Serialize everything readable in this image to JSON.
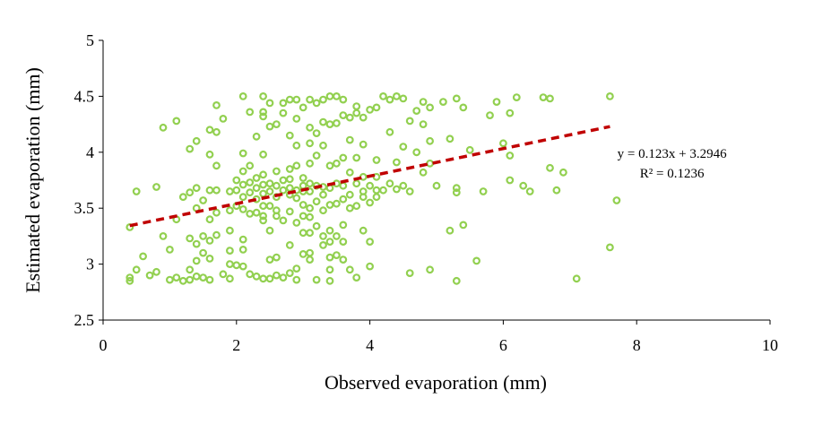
{
  "chart_data": {
    "type": "scatter",
    "xlabel": "Observed evaporation (mm)",
    "ylabel": "Estimated evaporation (mm)",
    "xlim": [
      0,
      10
    ],
    "ylim": [
      2.5,
      5
    ],
    "xticks": [
      "0",
      "2",
      "4",
      "6",
      "8",
      "10"
    ],
    "yticks": [
      "2.5",
      "3",
      "3.5",
      "4",
      "4.5",
      "5"
    ],
    "grid": false,
    "marker_color": "#92d050",
    "trendline_color": "#c00000",
    "trendline": {
      "slope": 0.123,
      "intercept": 3.2946,
      "x_range": [
        0.4,
        7.6
      ]
    },
    "annotation": {
      "equation": "y = 0.123x + 3.2946",
      "r2": "R² = 0.1236"
    },
    "points": [
      [
        0.4,
        2.85
      ],
      [
        0.4,
        2.88
      ],
      [
        0.4,
        3.33
      ],
      [
        0.5,
        3.65
      ],
      [
        0.5,
        2.95
      ],
      [
        0.6,
        3.07
      ],
      [
        0.7,
        2.9
      ],
      [
        0.8,
        3.69
      ],
      [
        0.8,
        2.93
      ],
      [
        0.9,
        4.22
      ],
      [
        0.9,
        3.25
      ],
      [
        1.0,
        3.13
      ],
      [
        1.0,
        2.86
      ],
      [
        1.1,
        4.28
      ],
      [
        1.1,
        3.4
      ],
      [
        1.1,
        2.88
      ],
      [
        1.2,
        3.6
      ],
      [
        1.2,
        2.85
      ],
      [
        1.3,
        4.03
      ],
      [
        1.3,
        3.64
      ],
      [
        1.3,
        3.23
      ],
      [
        1.3,
        2.95
      ],
      [
        1.3,
        2.86
      ],
      [
        1.4,
        4.1
      ],
      [
        1.4,
        3.68
      ],
      [
        1.4,
        3.5
      ],
      [
        1.4,
        3.18
      ],
      [
        1.4,
        3.03
      ],
      [
        1.4,
        2.89
      ],
      [
        1.5,
        3.57
      ],
      [
        1.5,
        3.25
      ],
      [
        1.5,
        3.1
      ],
      [
        1.5,
        2.88
      ],
      [
        1.6,
        4.2
      ],
      [
        1.6,
        3.98
      ],
      [
        1.6,
        3.66
      ],
      [
        1.6,
        3.4
      ],
      [
        1.6,
        3.21
      ],
      [
        1.6,
        3.05
      ],
      [
        1.6,
        2.86
      ],
      [
        1.7,
        4.42
      ],
      [
        1.7,
        4.18
      ],
      [
        1.7,
        3.88
      ],
      [
        1.7,
        3.66
      ],
      [
        1.7,
        3.46
      ],
      [
        1.7,
        3.26
      ],
      [
        1.8,
        4.3
      ],
      [
        1.8,
        2.91
      ],
      [
        1.9,
        3.65
      ],
      [
        1.9,
        3.48
      ],
      [
        1.9,
        3.3
      ],
      [
        1.9,
        3.12
      ],
      [
        1.9,
        3.0
      ],
      [
        1.9,
        2.87
      ],
      [
        2.0,
        3.75
      ],
      [
        2.0,
        3.66
      ],
      [
        2.0,
        3.52
      ],
      [
        2.0,
        2.99
      ],
      [
        2.1,
        4.5
      ],
      [
        2.1,
        3.99
      ],
      [
        2.1,
        3.83
      ],
      [
        2.1,
        3.71
      ],
      [
        2.1,
        3.6
      ],
      [
        2.1,
        3.49
      ],
      [
        2.1,
        3.22
      ],
      [
        2.1,
        3.13
      ],
      [
        2.1,
        2.98
      ],
      [
        2.2,
        4.36
      ],
      [
        2.2,
        3.88
      ],
      [
        2.2,
        3.73
      ],
      [
        2.2,
        3.64
      ],
      [
        2.2,
        3.45
      ],
      [
        2.2,
        2.91
      ],
      [
        2.3,
        4.14
      ],
      [
        2.3,
        3.77
      ],
      [
        2.3,
        3.68
      ],
      [
        2.3,
        3.58
      ],
      [
        2.3,
        3.46
      ],
      [
        2.3,
        2.89
      ],
      [
        2.4,
        4.5
      ],
      [
        2.4,
        4.36
      ],
      [
        2.4,
        4.32
      ],
      [
        2.4,
        3.98
      ],
      [
        2.4,
        3.8
      ],
      [
        2.4,
        3.71
      ],
      [
        2.4,
        3.63
      ],
      [
        2.4,
        3.52
      ],
      [
        2.4,
        3.43
      ],
      [
        2.4,
        3.39
      ],
      [
        2.4,
        2.87
      ],
      [
        2.5,
        4.44
      ],
      [
        2.5,
        4.23
      ],
      [
        2.5,
        3.72
      ],
      [
        2.5,
        3.65
      ],
      [
        2.5,
        3.52
      ],
      [
        2.5,
        3.3
      ],
      [
        2.5,
        3.04
      ],
      [
        2.5,
        2.87
      ],
      [
        2.6,
        4.25
      ],
      [
        2.6,
        3.83
      ],
      [
        2.6,
        3.7
      ],
      [
        2.6,
        3.6
      ],
      [
        2.6,
        3.48
      ],
      [
        2.6,
        3.43
      ],
      [
        2.6,
        3.06
      ],
      [
        2.6,
        2.9
      ],
      [
        2.7,
        4.44
      ],
      [
        2.7,
        4.35
      ],
      [
        2.7,
        3.75
      ],
      [
        2.7,
        3.66
      ],
      [
        2.7,
        3.39
      ],
      [
        2.7,
        2.88
      ],
      [
        2.8,
        4.47
      ],
      [
        2.8,
        4.15
      ],
      [
        2.8,
        3.85
      ],
      [
        2.8,
        3.76
      ],
      [
        2.8,
        3.68
      ],
      [
        2.8,
        3.62
      ],
      [
        2.8,
        3.47
      ],
      [
        2.8,
        3.17
      ],
      [
        2.8,
        2.92
      ],
      [
        2.9,
        4.47
      ],
      [
        2.9,
        4.3
      ],
      [
        2.9,
        4.06
      ],
      [
        2.9,
        3.88
      ],
      [
        2.9,
        3.66
      ],
      [
        2.9,
        3.59
      ],
      [
        2.9,
        3.37
      ],
      [
        2.9,
        2.96
      ],
      [
        2.9,
        2.86
      ],
      [
        3.0,
        4.4
      ],
      [
        3.0,
        3.77
      ],
      [
        3.0,
        3.7
      ],
      [
        3.0,
        3.65
      ],
      [
        3.0,
        3.53
      ],
      [
        3.0,
        3.43
      ],
      [
        3.0,
        3.28
      ],
      [
        3.0,
        3.09
      ],
      [
        3.1,
        4.47
      ],
      [
        3.1,
        4.22
      ],
      [
        3.1,
        4.08
      ],
      [
        3.1,
        3.9
      ],
      [
        3.1,
        3.72
      ],
      [
        3.1,
        3.65
      ],
      [
        3.1,
        3.5
      ],
      [
        3.1,
        3.42
      ],
      [
        3.1,
        3.28
      ],
      [
        3.1,
        3.1
      ],
      [
        3.1,
        3.04
      ],
      [
        3.2,
        4.44
      ],
      [
        3.2,
        4.17
      ],
      [
        3.2,
        3.97
      ],
      [
        3.2,
        3.7
      ],
      [
        3.2,
        3.56
      ],
      [
        3.2,
        3.34
      ],
      [
        3.2,
        2.86
      ],
      [
        3.3,
        4.47
      ],
      [
        3.3,
        4.27
      ],
      [
        3.3,
        4.06
      ],
      [
        3.3,
        3.69
      ],
      [
        3.3,
        3.62
      ],
      [
        3.3,
        3.48
      ],
      [
        3.3,
        3.25
      ],
      [
        3.3,
        3.17
      ],
      [
        3.4,
        4.5
      ],
      [
        3.4,
        4.25
      ],
      [
        3.4,
        3.88
      ],
      [
        3.4,
        3.68
      ],
      [
        3.4,
        3.53
      ],
      [
        3.4,
        3.3
      ],
      [
        3.4,
        3.2
      ],
      [
        3.4,
        3.06
      ],
      [
        3.4,
        2.95
      ],
      [
        3.4,
        2.85
      ],
      [
        3.5,
        4.5
      ],
      [
        3.5,
        4.26
      ],
      [
        3.5,
        3.9
      ],
      [
        3.5,
        3.72
      ],
      [
        3.5,
        3.54
      ],
      [
        3.5,
        3.25
      ],
      [
        3.5,
        3.08
      ],
      [
        3.6,
        4.47
      ],
      [
        3.6,
        4.33
      ],
      [
        3.6,
        3.95
      ],
      [
        3.6,
        3.7
      ],
      [
        3.6,
        3.58
      ],
      [
        3.6,
        3.35
      ],
      [
        3.6,
        3.2
      ],
      [
        3.6,
        3.04
      ],
      [
        3.7,
        4.31
      ],
      [
        3.7,
        4.11
      ],
      [
        3.7,
        3.82
      ],
      [
        3.7,
        3.62
      ],
      [
        3.7,
        3.5
      ],
      [
        3.7,
        2.95
      ],
      [
        3.8,
        4.41
      ],
      [
        3.8,
        4.35
      ],
      [
        3.8,
        3.95
      ],
      [
        3.8,
        3.72
      ],
      [
        3.8,
        3.52
      ],
      [
        3.8,
        2.88
      ],
      [
        3.9,
        4.31
      ],
      [
        3.9,
        4.07
      ],
      [
        3.9,
        3.78
      ],
      [
        3.9,
        3.65
      ],
      [
        3.9,
        3.6
      ],
      [
        3.9,
        3.3
      ],
      [
        4.0,
        4.38
      ],
      [
        4.0,
        3.7
      ],
      [
        4.0,
        3.55
      ],
      [
        4.0,
        3.2
      ],
      [
        4.0,
        2.98
      ],
      [
        4.1,
        4.4
      ],
      [
        4.1,
        3.93
      ],
      [
        4.1,
        3.78
      ],
      [
        4.1,
        3.66
      ],
      [
        4.1,
        3.6
      ],
      [
        4.2,
        4.5
      ],
      [
        4.2,
        3.66
      ],
      [
        4.3,
        4.47
      ],
      [
        4.3,
        4.18
      ],
      [
        4.3,
        3.72
      ],
      [
        4.4,
        4.5
      ],
      [
        4.4,
        3.91
      ],
      [
        4.4,
        3.67
      ],
      [
        4.5,
        4.48
      ],
      [
        4.5,
        4.05
      ],
      [
        4.5,
        3.7
      ],
      [
        4.6,
        4.28
      ],
      [
        4.6,
        3.65
      ],
      [
        4.6,
        2.92
      ],
      [
        4.7,
        4.37
      ],
      [
        4.7,
        4.0
      ],
      [
        4.8,
        4.45
      ],
      [
        4.8,
        4.25
      ],
      [
        4.8,
        3.82
      ],
      [
        4.9,
        4.4
      ],
      [
        4.9,
        4.1
      ],
      [
        4.9,
        3.9
      ],
      [
        4.9,
        2.95
      ],
      [
        5.0,
        3.7
      ],
      [
        5.1,
        4.45
      ],
      [
        5.2,
        4.12
      ],
      [
        5.2,
        3.3
      ],
      [
        5.3,
        4.48
      ],
      [
        5.3,
        3.68
      ],
      [
        5.3,
        3.64
      ],
      [
        5.3,
        2.85
      ],
      [
        5.4,
        4.4
      ],
      [
        5.4,
        3.35
      ],
      [
        5.5,
        4.02
      ],
      [
        5.6,
        3.03
      ],
      [
        5.7,
        3.65
      ],
      [
        5.8,
        4.33
      ],
      [
        5.9,
        4.45
      ],
      [
        6.0,
        4.08
      ],
      [
        6.1,
        4.35
      ],
      [
        6.1,
        3.97
      ],
      [
        6.1,
        3.75
      ],
      [
        6.2,
        4.49
      ],
      [
        6.3,
        3.7
      ],
      [
        6.4,
        3.65
      ],
      [
        6.6,
        4.49
      ],
      [
        6.7,
        4.48
      ],
      [
        6.7,
        3.86
      ],
      [
        6.8,
        3.66
      ],
      [
        6.9,
        3.82
      ],
      [
        7.1,
        2.87
      ],
      [
        7.6,
        4.5
      ],
      [
        7.6,
        3.15
      ],
      [
        7.7,
        3.57
      ]
    ]
  }
}
